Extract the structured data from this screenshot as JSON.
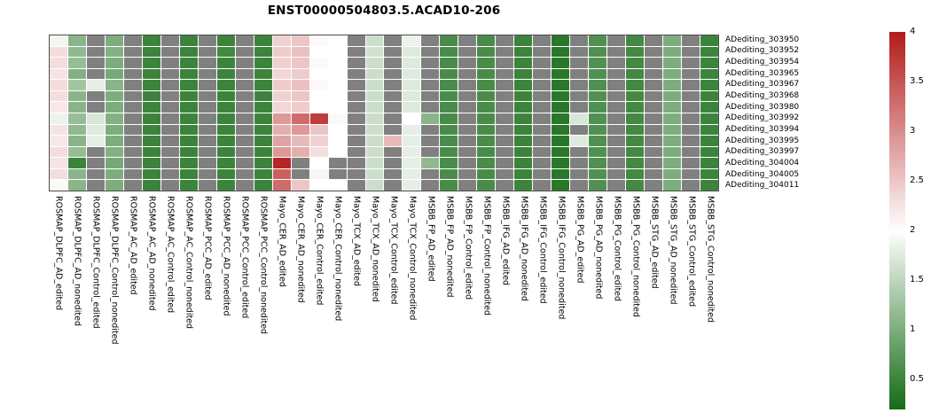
{
  "chart_data": {
    "type": "heatmap",
    "title": "ENST00000504803.5.ACAD10-206",
    "rows": [
      "ADediting_303950",
      "ADediting_303952",
      "ADediting_303954",
      "ADediting_303965",
      "ADediting_303967",
      "ADediting_303968",
      "ADediting_303980",
      "ADediting_303992",
      "ADediting_303994",
      "ADediting_303995",
      "ADediting_303997",
      "ADediting_304004",
      "ADediting_304005",
      "ADediting_304011"
    ],
    "columns": [
      "ROSMAP_DLPFC_AD_edited",
      "ROSMAP_DLPFC_AD_nonedited",
      "ROSMAP_DLPFC_Control_edited",
      "ROSMAP_DLPFC_Control_nonedited",
      "ROSMAP_AC_AD_edited",
      "ROSMAP_AC_AD_nonedited",
      "ROSMAP_AC_Control_edited",
      "ROSMAP_AC_Control_nonedited",
      "ROSMAP_PCC_AD_edited",
      "ROSMAP_PCC_AD_nonedited",
      "ROSMAP_PCC_Control_edited",
      "ROSMAP_PCC_Control_nonedited",
      "Mayo_CER_AD_edited",
      "Mayo_CER_AD_nonedited",
      "Mayo_CER_Control_edited",
      "Mayo_CER_Control_nonedited",
      "Mayo_TCX_AD_edited",
      "Mayo_TCX_AD_nonedited",
      "Mayo_TCX_Control_edited",
      "Mayo_TCX_Control_nonedited",
      "MSBB_FP_AD_edited",
      "MSBB_FP_AD_nonedited",
      "MSBB_FP_Control_edited",
      "MSBB_FP_Control_nonedited",
      "MSBB_IFG_AD_edited",
      "MSBB_IFG_AD_nonedited",
      "MSBB_IFG_Control_edited",
      "MSBB_IFG_Control_nonedited",
      "MSBB_PG_AD_edited",
      "MSBB_PG_AD_nonedited",
      "MSBB_PG_Control_edited",
      "MSBB_PG_Control_nonedited",
      "MSBB_STG_AD_edited",
      "MSBB_STG_AD_nonedited",
      "MSBB_STG_Control_edited",
      "MSBB_STG_Control_nonedited"
    ],
    "values": [
      [
        1.9,
        1.1,
        null,
        1.0,
        null,
        0.5,
        null,
        0.5,
        null,
        0.5,
        null,
        0.5,
        2.4,
        2.5,
        2.05,
        2.0,
        null,
        1.6,
        null,
        1.85,
        null,
        0.6,
        null,
        0.6,
        null,
        0.5,
        null,
        0.35,
        null,
        0.65,
        null,
        0.55,
        null,
        1.0,
        null,
        0.5
      ],
      [
        2.3,
        1.15,
        null,
        1.05,
        null,
        0.5,
        null,
        0.5,
        null,
        0.55,
        null,
        0.5,
        2.45,
        2.55,
        2.0,
        2.0,
        null,
        1.65,
        null,
        1.75,
        null,
        0.6,
        null,
        0.6,
        null,
        0.5,
        null,
        0.35,
        null,
        0.65,
        null,
        0.55,
        null,
        1.0,
        null,
        0.5
      ],
      [
        2.3,
        1.2,
        null,
        1.0,
        null,
        0.5,
        null,
        0.5,
        null,
        0.5,
        null,
        0.5,
        2.4,
        2.5,
        2.05,
        2.0,
        null,
        1.6,
        null,
        1.75,
        null,
        0.6,
        null,
        0.6,
        null,
        0.5,
        null,
        0.35,
        null,
        0.65,
        null,
        0.55,
        null,
        1.0,
        null,
        0.5
      ],
      [
        2.25,
        1.05,
        null,
        0.95,
        null,
        0.5,
        null,
        0.5,
        null,
        0.5,
        null,
        0.5,
        2.35,
        2.45,
        2.0,
        2.0,
        null,
        1.6,
        null,
        1.75,
        null,
        0.6,
        null,
        0.6,
        null,
        0.5,
        null,
        0.35,
        null,
        0.65,
        null,
        0.55,
        null,
        1.0,
        null,
        0.5
      ],
      [
        2.3,
        1.3,
        1.8,
        1.1,
        null,
        0.5,
        null,
        0.5,
        null,
        0.5,
        null,
        0.5,
        2.45,
        2.55,
        2.05,
        2.0,
        null,
        1.6,
        null,
        1.75,
        null,
        0.6,
        null,
        0.6,
        null,
        0.5,
        null,
        0.35,
        null,
        0.65,
        null,
        0.55,
        null,
        1.0,
        null,
        0.5
      ],
      [
        2.3,
        1.1,
        null,
        1.0,
        null,
        0.5,
        null,
        0.5,
        null,
        0.5,
        null,
        0.5,
        2.4,
        2.5,
        2.0,
        2.0,
        null,
        1.6,
        null,
        1.75,
        null,
        0.6,
        null,
        0.6,
        null,
        0.5,
        null,
        0.35,
        null,
        0.65,
        null,
        0.55,
        null,
        1.0,
        null,
        0.5
      ],
      [
        2.2,
        1.1,
        null,
        1.0,
        null,
        0.5,
        null,
        0.5,
        null,
        0.5,
        null,
        0.5,
        2.35,
        2.45,
        2.0,
        2.0,
        null,
        1.6,
        null,
        1.75,
        null,
        0.6,
        null,
        0.6,
        null,
        0.5,
        null,
        0.35,
        null,
        0.65,
        null,
        0.55,
        null,
        1.0,
        null,
        0.5
      ],
      [
        1.85,
        1.2,
        1.7,
        1.05,
        null,
        0.5,
        null,
        0.5,
        null,
        0.5,
        null,
        0.5,
        2.9,
        3.3,
        3.7,
        2.05,
        null,
        1.6,
        null,
        2.0,
        1.1,
        0.6,
        null,
        0.6,
        null,
        0.5,
        null,
        0.35,
        1.7,
        0.65,
        null,
        0.55,
        null,
        1.0,
        null,
        0.5
      ],
      [
        2.25,
        1.15,
        1.75,
        1.0,
        null,
        0.5,
        null,
        0.5,
        null,
        0.5,
        null,
        0.5,
        2.7,
        2.9,
        2.5,
        2.0,
        null,
        1.6,
        null,
        1.8,
        null,
        0.6,
        null,
        0.6,
        null,
        0.5,
        null,
        0.35,
        null,
        0.65,
        null,
        0.55,
        null,
        1.0,
        null,
        0.5
      ],
      [
        2.2,
        1.1,
        1.8,
        1.0,
        null,
        0.5,
        null,
        0.5,
        null,
        0.5,
        null,
        0.5,
        2.8,
        2.6,
        2.4,
        2.0,
        null,
        1.6,
        2.6,
        1.8,
        null,
        0.6,
        null,
        0.6,
        null,
        0.5,
        null,
        0.35,
        1.75,
        0.65,
        null,
        0.55,
        null,
        1.0,
        null,
        0.5
      ],
      [
        2.3,
        1.2,
        null,
        1.05,
        null,
        0.5,
        null,
        0.5,
        null,
        0.5,
        null,
        0.5,
        2.9,
        2.7,
        2.3,
        2.0,
        null,
        1.6,
        null,
        1.8,
        null,
        0.6,
        null,
        0.6,
        null,
        0.5,
        null,
        0.35,
        null,
        0.65,
        null,
        0.55,
        null,
        1.0,
        null,
        0.5
      ],
      [
        2.25,
        0.5,
        null,
        0.95,
        null,
        0.5,
        null,
        0.5,
        null,
        0.5,
        null,
        0.5,
        3.9,
        null,
        2.0,
        null,
        null,
        1.6,
        null,
        1.8,
        1.15,
        0.6,
        null,
        0.6,
        null,
        0.5,
        null,
        0.35,
        null,
        0.65,
        null,
        0.55,
        null,
        1.0,
        null,
        0.5
      ],
      [
        2.3,
        1.1,
        null,
        1.0,
        null,
        0.5,
        null,
        0.5,
        null,
        0.5,
        null,
        0.5,
        3.4,
        null,
        2.1,
        null,
        null,
        1.6,
        null,
        1.8,
        null,
        0.6,
        null,
        0.6,
        null,
        0.5,
        null,
        0.35,
        null,
        0.65,
        null,
        0.55,
        null,
        1.0,
        null,
        0.5
      ],
      [
        1.95,
        1.1,
        null,
        1.0,
        null,
        0.5,
        null,
        0.5,
        null,
        0.5,
        null,
        0.5,
        3.3,
        2.5,
        2.0,
        2.0,
        null,
        1.6,
        null,
        1.8,
        null,
        0.6,
        null,
        0.6,
        null,
        0.5,
        null,
        0.35,
        null,
        0.65,
        null,
        0.55,
        null,
        1.0,
        null,
        0.5
      ]
    ],
    "color_scale": {
      "min": 0.2,
      "mid_value": 2.0,
      "max": 4.0,
      "low": "#156b15",
      "mid": "#ffffff",
      "high": "#b31b1b",
      "na": "#808080"
    },
    "colorbar": {
      "ticks": [
        "4",
        "3.5",
        "3",
        "2.5",
        "2",
        "1.5",
        "1",
        "0.5"
      ],
      "tick_values": [
        4,
        3.5,
        3,
        2.5,
        2,
        1.5,
        1,
        0.5
      ]
    },
    "legend_position": "right",
    "grid": "off"
  }
}
